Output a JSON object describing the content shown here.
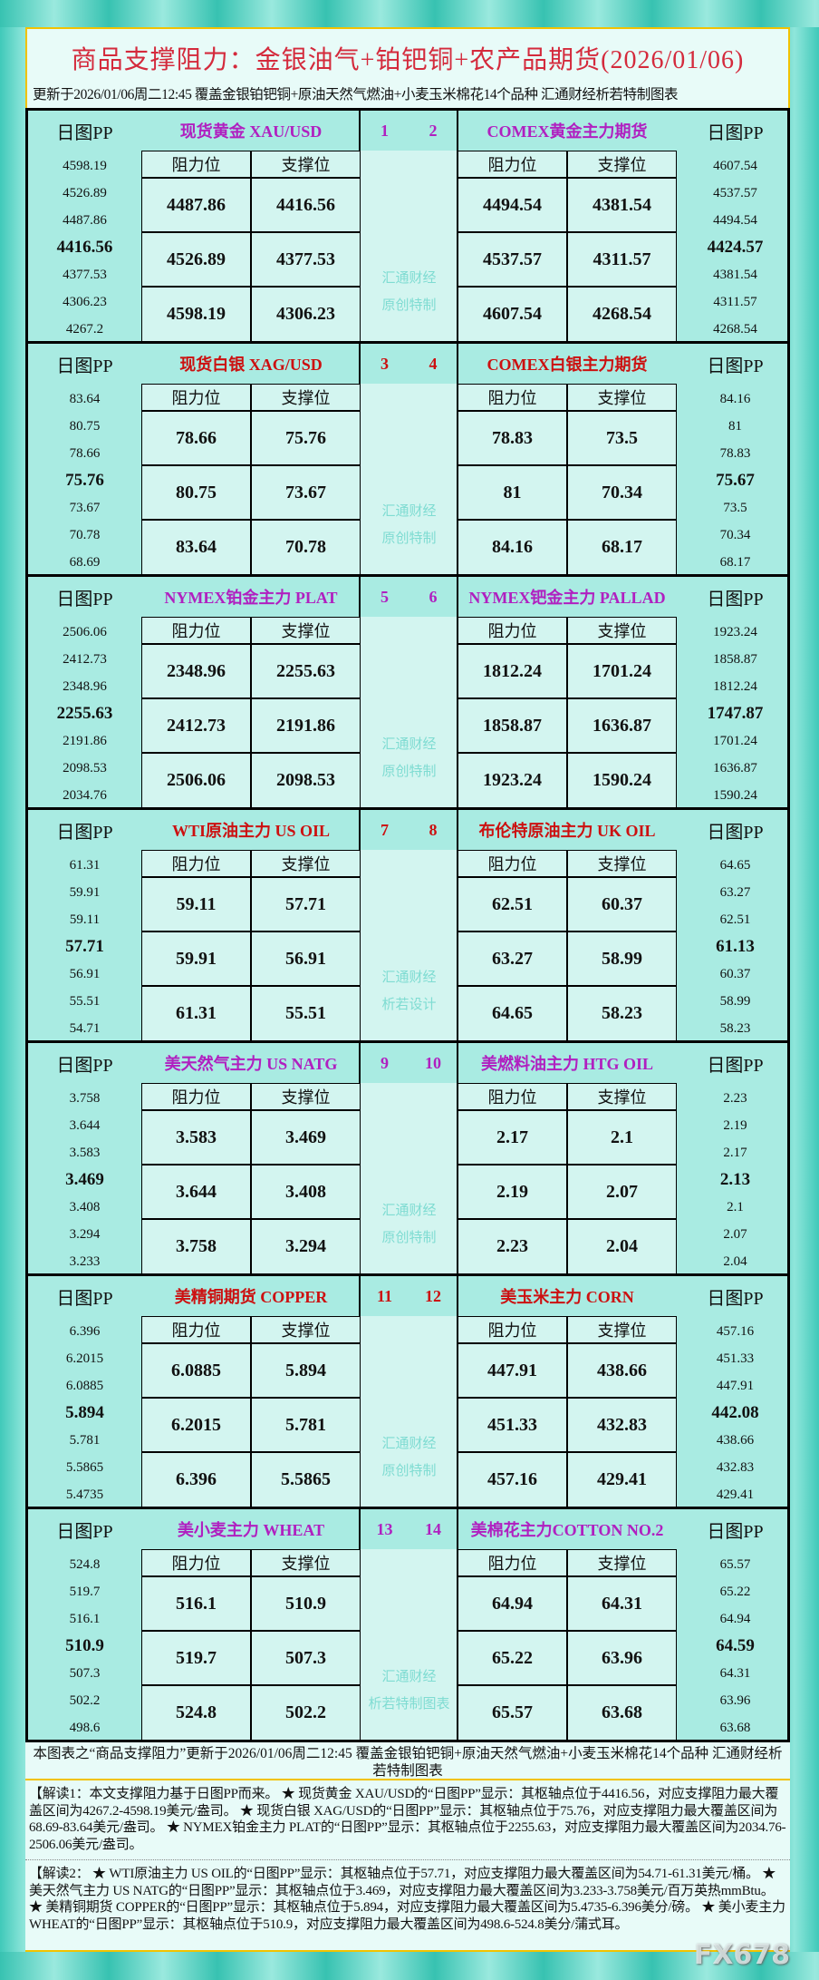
{
  "title": "商品支撑阻力：金银油气+铂钯铜+农产品期货(2026/01/06)",
  "subtitle": "更新于2026/01/06周二12:45 覆盖金银铂钯铜+原油天然气燃油+小麦玉米棉花14个品种 汇通财经析若特制图表",
  "labels": {
    "pp": "日图PP",
    "resistance": "阻力位",
    "support": "支撑位"
  },
  "colors": {
    "purple": "#b020c0",
    "red": "#cc1010",
    "teal": "#a9ebe2"
  },
  "blocks": [
    {
      "color": "purple",
      "mid": [
        "汇通财经",
        "原创特制"
      ],
      "left": {
        "name": "现货黄金 XAU/USD",
        "no": "1",
        "pp": [
          "4598.19",
          "4526.89",
          "4487.86",
          "4416.56",
          "4377.53",
          "4306.23",
          "4267.2"
        ],
        "res": [
          "4487.86",
          "4526.89",
          "4598.19"
        ],
        "sup": [
          "4416.56",
          "4377.53",
          "4306.23"
        ]
      },
      "right": {
        "name": "COMEX黄金主力期货",
        "no": "2",
        "pp": [
          "4607.54",
          "4537.57",
          "4494.54",
          "4424.57",
          "4381.54",
          "4311.57",
          "4268.54"
        ],
        "res": [
          "4494.54",
          "4537.57",
          "4607.54"
        ],
        "sup": [
          "4381.54",
          "4311.57",
          "4268.54"
        ]
      }
    },
    {
      "color": "red",
      "mid": [
        "汇通财经",
        "原创特制"
      ],
      "left": {
        "name": "现货白银 XAG/USD",
        "no": "3",
        "pp": [
          "83.64",
          "80.75",
          "78.66",
          "75.76",
          "73.67",
          "70.78",
          "68.69"
        ],
        "res": [
          "78.66",
          "80.75",
          "83.64"
        ],
        "sup": [
          "75.76",
          "73.67",
          "70.78"
        ]
      },
      "right": {
        "name": "COMEX白银主力期货",
        "no": "4",
        "pp": [
          "84.16",
          "81",
          "78.83",
          "75.67",
          "73.5",
          "70.34",
          "68.17"
        ],
        "res": [
          "78.83",
          "81",
          "84.16"
        ],
        "sup": [
          "73.5",
          "70.34",
          "68.17"
        ]
      }
    },
    {
      "color": "purple",
      "mid": [
        "汇通财经",
        "原创特制"
      ],
      "left": {
        "name": "NYMEX铂金主力 PLAT",
        "no": "5",
        "pp": [
          "2506.06",
          "2412.73",
          "2348.96",
          "2255.63",
          "2191.86",
          "2098.53",
          "2034.76"
        ],
        "res": [
          "2348.96",
          "2412.73",
          "2506.06"
        ],
        "sup": [
          "2255.63",
          "2191.86",
          "2098.53"
        ]
      },
      "right": {
        "name": "NYMEX钯金主力 PALLAD",
        "no": "6",
        "pp": [
          "1923.24",
          "1858.87",
          "1812.24",
          "1747.87",
          "1701.24",
          "1636.87",
          "1590.24"
        ],
        "res": [
          "1812.24",
          "1858.87",
          "1923.24"
        ],
        "sup": [
          "1701.24",
          "1636.87",
          "1590.24"
        ]
      }
    },
    {
      "color": "red",
      "mid": [
        "汇通财经",
        "析若设计"
      ],
      "left": {
        "name": "WTI原油主力 US OIL",
        "no": "7",
        "pp": [
          "61.31",
          "59.91",
          "59.11",
          "57.71",
          "56.91",
          "55.51",
          "54.71"
        ],
        "res": [
          "59.11",
          "59.91",
          "61.31"
        ],
        "sup": [
          "57.71",
          "56.91",
          "55.51"
        ]
      },
      "right": {
        "name": "布伦特原油主力 UK OIL",
        "no": "8",
        "pp": [
          "64.65",
          "63.27",
          "62.51",
          "61.13",
          "60.37",
          "58.99",
          "58.23"
        ],
        "res": [
          "62.51",
          "63.27",
          "64.65"
        ],
        "sup": [
          "60.37",
          "58.99",
          "58.23"
        ]
      }
    },
    {
      "color": "purple",
      "mid": [
        "汇通财经",
        "原创特制"
      ],
      "left": {
        "name": "美天然气主力 US NATG",
        "no": "9",
        "pp": [
          "3.758",
          "3.644",
          "3.583",
          "3.469",
          "3.408",
          "3.294",
          "3.233"
        ],
        "res": [
          "3.583",
          "3.644",
          "3.758"
        ],
        "sup": [
          "3.469",
          "3.408",
          "3.294"
        ]
      },
      "right": {
        "name": "美燃料油主力 HTG OIL",
        "no": "10",
        "pp": [
          "2.23",
          "2.19",
          "2.17",
          "2.13",
          "2.1",
          "2.07",
          "2.04"
        ],
        "res": [
          "2.17",
          "2.19",
          "2.23"
        ],
        "sup": [
          "2.1",
          "2.07",
          "2.04"
        ]
      }
    },
    {
      "color": "red",
      "mid": [
        "汇通财经",
        "原创特制"
      ],
      "left": {
        "name": "美精铜期货 COPPER",
        "no": "11",
        "pp": [
          "6.396",
          "6.2015",
          "6.0885",
          "5.894",
          "5.781",
          "5.5865",
          "5.4735"
        ],
        "res": [
          "6.0885",
          "6.2015",
          "6.396"
        ],
        "sup": [
          "5.894",
          "5.781",
          "5.5865"
        ]
      },
      "right": {
        "name": "美玉米主力 CORN",
        "no": "12",
        "pp": [
          "457.16",
          "451.33",
          "447.91",
          "442.08",
          "438.66",
          "432.83",
          "429.41"
        ],
        "res": [
          "447.91",
          "451.33",
          "457.16"
        ],
        "sup": [
          "438.66",
          "432.83",
          "429.41"
        ]
      }
    },
    {
      "color": "purple",
      "mid": [
        "汇通财经",
        "析若特制图表"
      ],
      "left": {
        "name": "美小麦主力 WHEAT",
        "no": "13",
        "pp": [
          "524.8",
          "519.7",
          "516.1",
          "510.9",
          "507.3",
          "502.2",
          "498.6"
        ],
        "res": [
          "516.1",
          "519.7",
          "524.8"
        ],
        "sup": [
          "510.9",
          "507.3",
          "502.2"
        ]
      },
      "right": {
        "name": "美棉花主力COTTON NO.2",
        "no": "14",
        "pp": [
          "65.57",
          "65.22",
          "64.94",
          "64.59",
          "64.31",
          "63.96",
          "63.68"
        ],
        "res": [
          "64.94",
          "65.22",
          "65.57"
        ],
        "sup": [
          "64.31",
          "63.96",
          "63.68"
        ]
      }
    }
  ],
  "footer": "本图表之“商品支撑阻力”更新于2026/01/06周二12:45 覆盖金银铂钯铜+原油天然气燃油+小麦玉米棉花14个品种 汇通财经析若特制图表",
  "explanation1": "【解读1：本文支撑阻力基于日图PP而来。 ★ 现货黄金 XAU/USD的“日图PP”显示：其枢轴点位于4416.56，对应支撑阻力最大覆盖区间为4267.2-4598.19美元/盎司。 ★ 现货白银 XAG/USD的“日图PP”显示：其枢轴点位于75.76，对应支撑阻力最大覆盖区间为68.69-83.64美元/盎司。 ★ NYMEX铂金主力 PLAT的“日图PP”显示：其枢轴点位于2255.63，对应支撑阻力最大覆盖区间为2034.76-2506.06美元/盎司。",
  "explanation2": "【解读2： ★ WTI原油主力 US OIL的“日图PP”显示：其枢轴点位于57.71，对应支撑阻力最大覆盖区间为54.71-61.31美元/桶。 ★ 美天然气主力 US NATG的“日图PP”显示：其枢轴点位于3.469，对应支撑阻力最大覆盖区间为3.233-3.758美元/百万英热mmBtu。 ★ 美精铜期货 COPPER的“日图PP”显示：其枢轴点位于5.894，对应支撑阻力最大覆盖区间为5.4735-6.396美分/磅。 ★ 美小麦主力 WHEAT的“日图PP”显示：其枢轴点位于510.9，对应支撑阻力最大覆盖区间为498.6-524.8美分/蒲式耳。",
  "watermark": "FX678"
}
